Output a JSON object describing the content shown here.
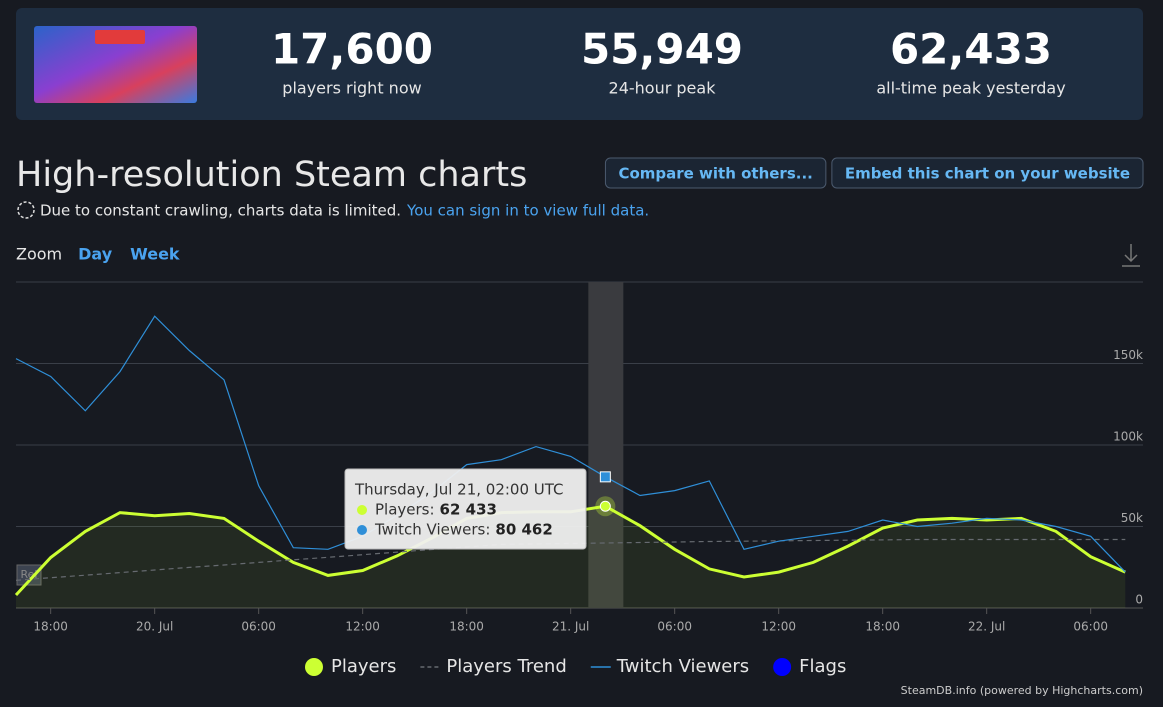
{
  "header": {
    "stats": [
      {
        "value": "17,600",
        "label": "players right now"
      },
      {
        "value": "55,949",
        "label": "24-hour peak"
      },
      {
        "value": "62,433",
        "label": "all-time peak yesterday"
      }
    ]
  },
  "section": {
    "title": "High-resolution Steam charts",
    "buttons": [
      "Compare with others...",
      "Embed this chart on your website"
    ],
    "notice": "Due to constant crawling, charts data is limited.",
    "notice_link": "You can sign in to view full data.",
    "zoom_label": "Zoom",
    "zoom_options": [
      "Day",
      "Week"
    ]
  },
  "chart_data": {
    "type": "line",
    "categories": [
      null,
      "18:00",
      null,
      null,
      "20. Jul",
      null,
      null,
      "06:00",
      null,
      null,
      "12:00",
      null,
      null,
      "18:00",
      null,
      null,
      "21. Jul",
      null,
      null,
      "06:00",
      null,
      null,
      "12:00",
      null,
      null,
      "18:00",
      null,
      null,
      "22. Jul",
      null,
      null,
      "06:00",
      null
    ],
    "series": [
      {
        "name": "Players",
        "color": "#ccff33",
        "values": [
          8000,
          31000,
          47000,
          58500,
          56600,
          58000,
          55000,
          41000,
          28000,
          20000,
          23000,
          32000,
          43000,
          55000,
          58500,
          59000,
          59000,
          62433,
          50500,
          36000,
          24000,
          19000,
          22000,
          28000,
          38000,
          49000,
          54000,
          55000,
          54000,
          55000,
          47000,
          31500,
          22000
        ]
      },
      {
        "name": "Players Trend",
        "color": "#666a70",
        "dashed": true,
        "values": [
          17000,
          18600,
          20100,
          21700,
          23300,
          24900,
          26400,
          28000,
          29600,
          31100,
          32700,
          34300,
          35900,
          37400,
          39000,
          39300,
          39600,
          39900,
          40200,
          40500,
          40800,
          41000,
          41200,
          41400,
          41600,
          41800,
          42000,
          42000,
          42000,
          42000,
          42000,
          42000,
          42000
        ]
      },
      {
        "name": "Twitch Viewers",
        "color": "#2f8fd8",
        "values": [
          153000,
          142000,
          121000,
          145000,
          179000,
          158000,
          140000,
          75000,
          37000,
          36000,
          44000,
          57000,
          71000,
          88000,
          91000,
          99000,
          93000,
          80462,
          69000,
          72000,
          78000,
          36000,
          41000,
          44000,
          47000,
          54000,
          50000,
          52000,
          55000,
          54000,
          50000,
          44000,
          22000
        ]
      }
    ],
    "flags": {
      "name": "Flags",
      "color": "#0000ff",
      "label": "Rel"
    },
    "ylim": [
      0,
      200000
    ],
    "yticks": [
      0,
      {
        "value": 50000,
        "label": "50k"
      },
      {
        "value": 100000,
        "label": "100k"
      },
      {
        "value": 150000,
        "label": "150k"
      }
    ],
    "grid": true,
    "tooltip": {
      "title": "Thursday, Jul 21, 02:00 UTC",
      "rows": [
        {
          "label": "Players:",
          "value_label": "62 433"
        },
        {
          "label": "Twitch Viewers:",
          "value_label": "80 462"
        }
      ]
    },
    "credit": "SteamDB.info (powered by Highcharts.com)"
  }
}
